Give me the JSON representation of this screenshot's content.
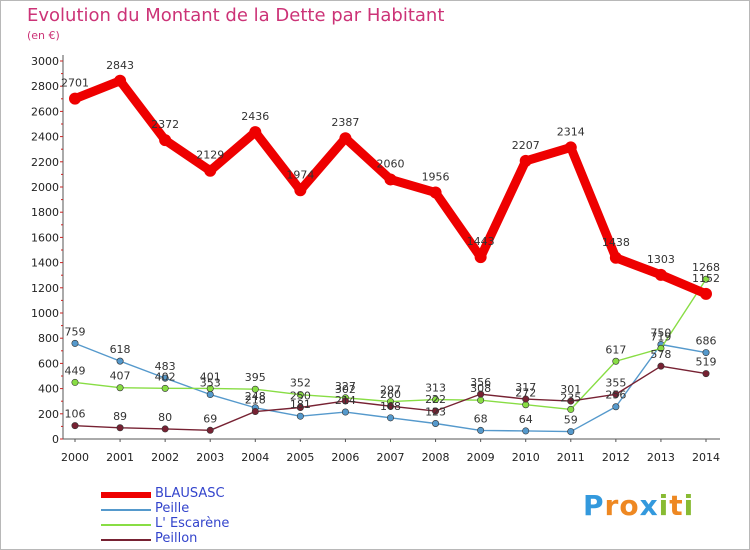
{
  "chart_data": {
    "type": "line",
    "title": "Evolution du Montant de la Dette par Habitant",
    "subtitle": "(en €)",
    "x": [
      "2000",
      "2001",
      "2002",
      "2003",
      "2004",
      "2005",
      "2006",
      "2007",
      "2008",
      "2009",
      "2010",
      "2011",
      "2012",
      "2013",
      "2014"
    ],
    "ylim": [
      0,
      3000
    ],
    "yticks": [
      0,
      200,
      400,
      600,
      800,
      1000,
      1200,
      1400,
      1600,
      1800,
      2000,
      2200,
      2400,
      2600,
      2800,
      3000
    ],
    "grid": false,
    "legend_position": "bottom-left",
    "series": [
      {
        "name": "BLAUSASC",
        "color": "#ee0000",
        "values": [
          2701,
          2843,
          2372,
          2129,
          2436,
          1974,
          2387,
          2060,
          1956,
          1443,
          2207,
          2314,
          1438,
          1303,
          1152
        ]
      },
      {
        "name": "Peille",
        "color": "#5599cc",
        "values": [
          759,
          618,
          483,
          353,
          248,
          181,
          214,
          168,
          123,
          68,
          64,
          59,
          256,
          750,
          686
        ]
      },
      {
        "name": "L' Escarène",
        "color": "#88dd44",
        "values": [
          449,
          407,
          402,
          401,
          395,
          352,
          327,
          297,
          313,
          308,
          272,
          235,
          617,
          719,
          1268
        ]
      },
      {
        "name": "Peillon",
        "color": "#772233",
        "values": [
          106,
          89,
          80,
          69,
          218,
          250,
          302,
          260,
          222,
          356,
          317,
          301,
          355,
          578,
          519
        ]
      }
    ]
  },
  "logo": {
    "text": "Proxiti",
    "letters": [
      "P",
      "r",
      "o",
      "x",
      "i",
      "t",
      "i"
    ]
  }
}
